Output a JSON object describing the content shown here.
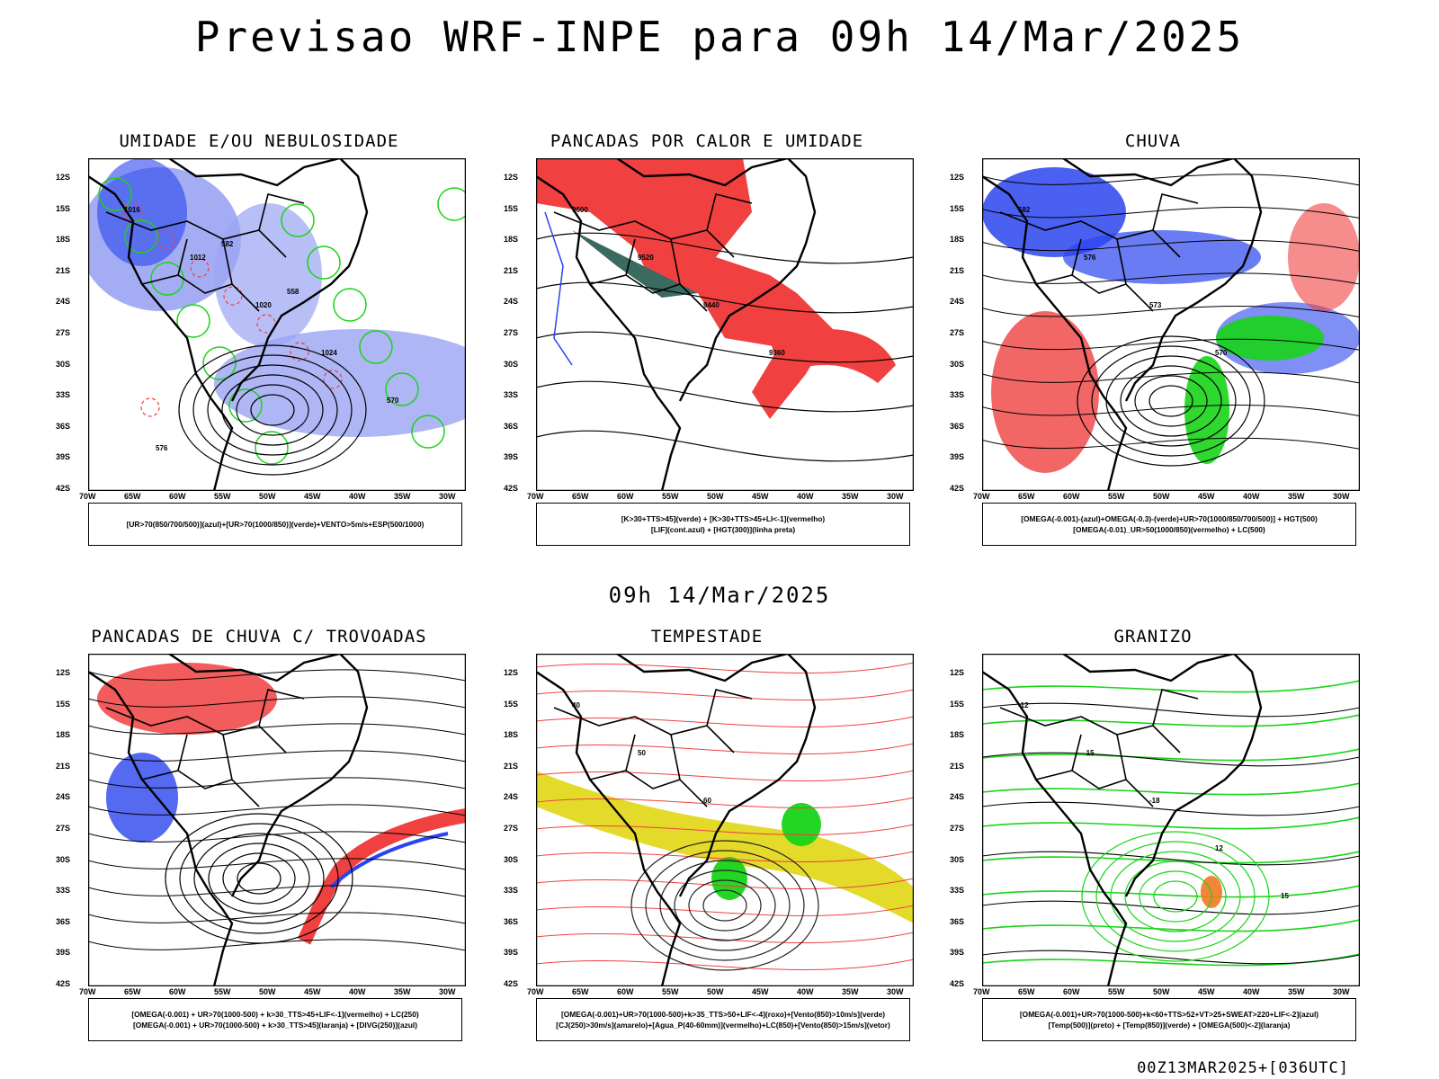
{
  "header": {
    "title": "Previsao WRF-INPE  para 09h 14/Mar/2025"
  },
  "middle": {
    "title": "09h 14/Mar/2025"
  },
  "footer": {
    "stamp": "00Z13MAR2025+[036UTC]"
  },
  "axes": {
    "lat_labels": [
      "12S",
      "15S",
      "18S",
      "21S",
      "24S",
      "27S",
      "30S",
      "33S",
      "36S",
      "39S",
      "42S"
    ],
    "lon_labels": [
      "70W",
      "65W",
      "60W",
      "55W",
      "50W",
      "45W",
      "40W",
      "35W",
      "30W"
    ]
  },
  "panels": [
    {
      "title": "UMIDADE E/OU NEBULOSIDADE",
      "legend": [
        "[UR>70(850/700/500)](azul)+[UR>70(1000/850)](verde)+VENTO>5m/s+ESP(500/1000)"
      ],
      "contour_labels": [
        "1016",
        "1012",
        "1020",
        "1024",
        "570",
        "576",
        "582",
        "558"
      ]
    },
    {
      "title": "PANCADAS POR CALOR E UMIDADE",
      "legend": [
        "[K>30+TTS>45](verde)  +  [K>30+TTS>45+LI<-1](vermelho)",
        "[LIF](cont.azul)  +  [HGT(300)](linha preta)"
      ],
      "contour_labels": [
        "9600",
        "9520",
        "9440",
        "9360"
      ]
    },
    {
      "title": "CHUVA",
      "legend": [
        "[OMEGA(-0.001)-(azul)+OMEGA(-0.3)-(verde)+UR>70(1000/850/700/500)]  +  HGT(500)",
        "[OMEGA(-0.01)_UR>50(1000/850)(vermelho)  +  LC(500)"
      ],
      "contour_labels": [
        "582",
        "576",
        "573",
        "570"
      ]
    },
    {
      "title": "PANCADAS DE CHUVA C/ TROVOADAS",
      "legend": [
        "[OMEGA(-0.001)  +  UR>70(1000-500)  +  k>30_TTS>45+LIF<-1](vermelho)  +  LC(250)",
        "[OMEGA(-0.001)  +  UR>70(1000-500)  +  k>30_TTS>45](laranja)  +  [DIVG(250)](azul)"
      ],
      "contour_labels": []
    },
    {
      "title": "TEMPESTADE",
      "legend": [
        "[OMEGA(-0.001)+UR>70(1000-500)+k>35_TTS>50+LIF<-4](roxo)+[Vento(850)>10m/s](verde)",
        "[CJ(250)>30m/s](amarelo)+[Agua_P(40-60mm)](vermelho)+LC(850)+[Vento(850)>15m/s](vetor)"
      ],
      "contour_labels": [
        "40",
        "50",
        "60"
      ]
    },
    {
      "title": "GRANIZO",
      "legend": [
        "[OMEGA(-0.001)+UR>70(1000-500)+k<60+TTS>52+VT>25+SWEAT>220+LIF<-2](azul)",
        "[Temp(500)](preto)  +  [Temp(850)](verde)  +  [OMEGA(500)<-2](laranja)"
      ],
      "contour_labels": [
        "-12",
        "-15",
        "-18",
        "12",
        "15"
      ]
    }
  ],
  "colors": {
    "blue": "#2a44ee",
    "lightblue": "#9aa4f2",
    "green": "#18d418",
    "red": "#f04040",
    "orange": "#f07a20",
    "yellow": "#e4da2a",
    "teal": "#3a6a60"
  }
}
